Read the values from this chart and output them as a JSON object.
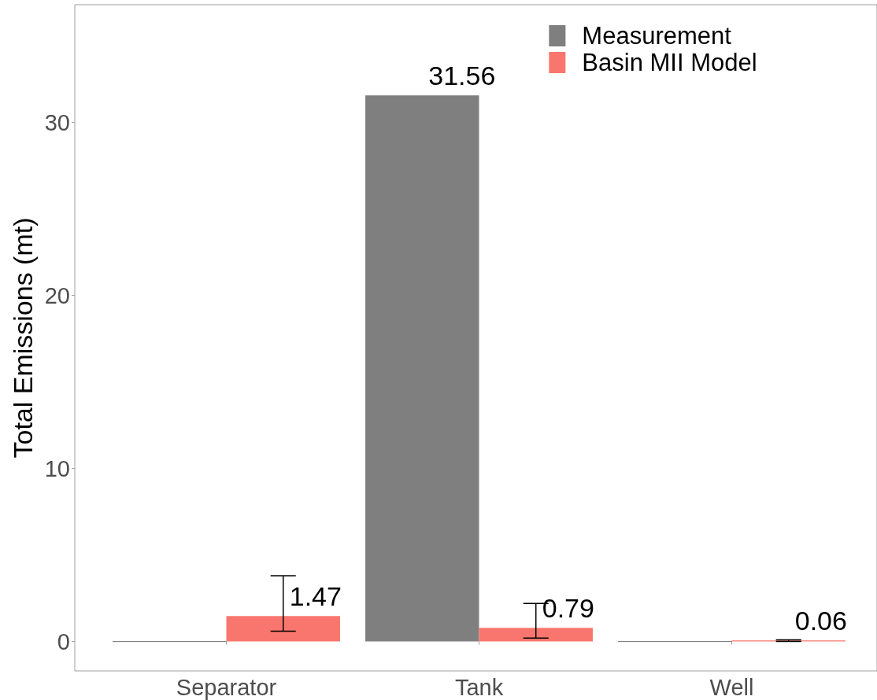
{
  "chart_data": {
    "type": "bar",
    "categories": [
      "Separator",
      "Tank",
      "Well"
    ],
    "ylabel": "Total Emissions (mt)",
    "series": [
      {
        "name": "Measurement",
        "color": "#7f7f7f",
        "values": [
          0,
          31.56,
          0
        ],
        "value_labels": [
          null,
          "31.56",
          null
        ]
      },
      {
        "name": "Basin MII Model",
        "color": "#f8766d",
        "values": [
          1.47,
          0.79,
          0.06
        ],
        "value_labels": [
          "1.47",
          "0.79",
          "0.06"
        ],
        "errors": [
          [
            0.6,
            3.8
          ],
          [
            0.2,
            2.2
          ],
          [
            0,
            0.1
          ]
        ]
      }
    ],
    "ylim": [
      -1.7,
      36.8
    ],
    "yticks": [
      0,
      10,
      20,
      30
    ],
    "legend": "top right"
  }
}
